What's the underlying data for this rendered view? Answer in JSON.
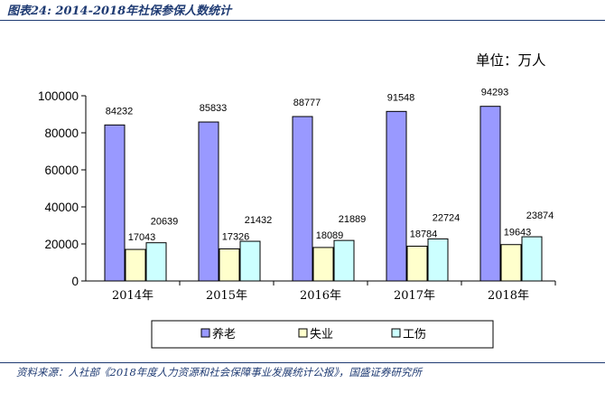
{
  "header": {
    "figure_title": "图表24:  2014-2018年社保参保人数统计"
  },
  "footer": {
    "source": "资料来源：人社部《2018年度人力资源和社会保障事业发展统计公报》，国盛证券研究所"
  },
  "chart_data": {
    "type": "bar",
    "unit_label": "单位：万人",
    "categories": [
      "2014年",
      "2015年",
      "2016年",
      "2017年",
      "2018年"
    ],
    "series": [
      {
        "name": "养老",
        "color": "#9999ff",
        "values": [
          84232,
          85833,
          88777,
          91548,
          94293
        ]
      },
      {
        "name": "失业",
        "color": "#ffffcc",
        "values": [
          17043,
          17326,
          18089,
          18784,
          19643
        ]
      },
      {
        "name": "工伤",
        "color": "#ccffff",
        "values": [
          20639,
          21432,
          21889,
          22724,
          23874
        ]
      }
    ],
    "ylim": [
      0,
      100000
    ],
    "yticks": [
      "0",
      "20000",
      "40000",
      "60000",
      "80000",
      "100000"
    ],
    "grid": false,
    "legend_position": "bottom"
  }
}
